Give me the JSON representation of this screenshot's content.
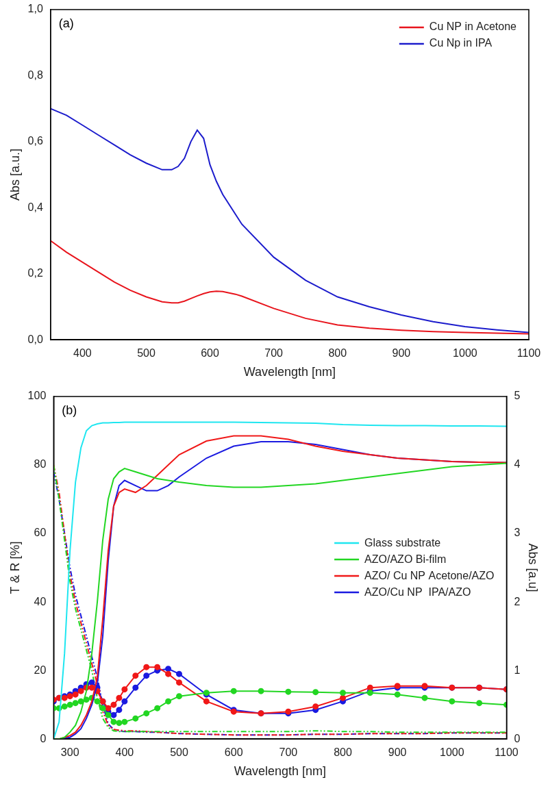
{
  "chart_data": [
    {
      "type": "line",
      "title": "(a)",
      "xlabel": "Wavelength [nm]",
      "ylabel": "Abs [a.u.]",
      "x": [
        350,
        375,
        400,
        425,
        450,
        475,
        500,
        525,
        540,
        550,
        560,
        570,
        580,
        590,
        600,
        610,
        620,
        640,
        650,
        700,
        750,
        800,
        850,
        900,
        950,
        1000,
        1050,
        1100
      ],
      "series": [
        {
          "name": "Cu NP in Acetone",
          "color": "#e8141c",
          "line_style": "solid",
          "marker": "none",
          "values": [
            0.3,
            0.265,
            0.235,
            0.205,
            0.175,
            0.15,
            0.13,
            0.115,
            0.112,
            0.112,
            0.117,
            0.125,
            0.133,
            0.14,
            0.145,
            0.147,
            0.146,
            0.138,
            0.132,
            0.095,
            0.065,
            0.045,
            0.035,
            0.029,
            0.025,
            0.022,
            0.02,
            0.018
          ]
        },
        {
          "name": "Cu Np in IPA",
          "color": "#1c1ccc",
          "line_style": "solid",
          "marker": "none",
          "values": [
            0.7,
            0.68,
            0.65,
            0.62,
            0.59,
            0.56,
            0.535,
            0.515,
            0.515,
            0.525,
            0.55,
            0.6,
            0.635,
            0.61,
            0.53,
            0.48,
            0.44,
            0.38,
            0.35,
            0.25,
            0.18,
            0.13,
            0.1,
            0.075,
            0.055,
            0.04,
            0.03,
            0.022
          ]
        }
      ],
      "xlim": [
        350,
        1100
      ],
      "xticks": [
        400,
        500,
        600,
        700,
        800,
        900,
        1000,
        1100
      ],
      "ylim": [
        0,
        1.0
      ],
      "yticks": [
        {
          "value": 0,
          "label": "0,0"
        },
        {
          "value": 0.2,
          "label": "0,2"
        },
        {
          "value": 0.4,
          "label": "0,4"
        },
        {
          "value": 0.6,
          "label": "0,6"
        },
        {
          "value": 0.8,
          "label": "0,8"
        },
        {
          "value": 1.0,
          "label": "1,0"
        }
      ],
      "grid": false,
      "legend": "upper right"
    },
    {
      "type": "line",
      "title": "(b)",
      "xlabel": "Wavelength [nm]",
      "ylabel": "T & R [%]",
      "y2label": "Abs [a.u]",
      "x": [
        270,
        280,
        290,
        300,
        310,
        320,
        330,
        340,
        350,
        360,
        370,
        380,
        390,
        400,
        420,
        440,
        460,
        480,
        500,
        550,
        600,
        650,
        700,
        750,
        800,
        850,
        900,
        950,
        1000,
        1050,
        1100
      ],
      "series": [
        {
          "name": "Glass substrate",
          "color": "#1ee6f0",
          "line_style": "solid",
          "marker": "none",
          "values": [
            0,
            5,
            25,
            55,
            75,
            85,
            90,
            91.5,
            92,
            92.3,
            92.3,
            92.4,
            92.4,
            92.5,
            92.5,
            92.5,
            92.5,
            92.5,
            92.5,
            92.5,
            92.5,
            92.4,
            92.3,
            92.2,
            91.8,
            91.6,
            91.5,
            91.5,
            91.4,
            91.4,
            91.3
          ]
        },
        {
          "name": "AZO/AZO Bi-film",
          "color": "#22d622",
          "line_style": "solid",
          "marker": "none",
          "values": [
            0,
            0,
            0.5,
            2,
            4,
            8,
            14,
            25,
            40,
            58,
            70,
            76,
            78,
            79,
            78,
            77,
            76,
            75.5,
            75,
            74,
            73.5,
            73.5,
            74,
            74.5,
            75.5,
            76.5,
            77.5,
            78.5,
            79.5,
            80,
            80.5
          ]
        },
        {
          "name": "AZO/ Cu NP Acetone/AZO",
          "color": "#f01818",
          "line_style": "solid",
          "marker": "none",
          "values": [
            0,
            0,
            0.5,
            1,
            2,
            4,
            7,
            11,
            18,
            35,
            55,
            68,
            72,
            73,
            72,
            74,
            77,
            80,
            83,
            87,
            88.5,
            88.5,
            87.5,
            85.5,
            84,
            83,
            82,
            81.5,
            81,
            80.8,
            80.7
          ]
        },
        {
          "name": "AZO/Cu NP  IPA/AZO",
          "color": "#1a1ae0",
          "line_style": "solid",
          "marker": "none",
          "values": [
            0,
            0,
            0.3,
            0.5,
            1.5,
            3,
            6,
            10,
            16,
            30,
            52,
            68,
            74,
            75.5,
            74,
            72.5,
            72.5,
            74,
            76.5,
            82,
            85.5,
            86.8,
            86.8,
            86,
            84.5,
            83,
            82,
            81.5,
            81,
            80.8,
            80.7
          ]
        },
        {
          "name": "AZO/AZO Bi-film",
          "color": "#22d622",
          "line_style": "solid",
          "marker": "circle",
          "values": [
            9,
            9,
            9.5,
            10,
            10.5,
            11,
            11.5,
            12,
            11,
            9,
            7,
            5,
            4.7,
            5,
            6,
            7.5,
            9,
            11,
            12.5,
            13.5,
            14,
            14,
            13.8,
            13.7,
            13.5,
            13.5,
            13,
            12,
            11,
            10.5,
            10
          ]
        },
        {
          "name": "AZO/ Cu NP Acetone/AZO",
          "color": "#f01818",
          "line_style": "solid",
          "marker": "circle",
          "values": [
            11.5,
            12,
            12,
            12.5,
            13,
            14,
            15,
            15,
            14,
            11,
            9,
            10,
            12,
            14.5,
            18.5,
            21,
            21,
            19,
            16.5,
            11,
            8,
            7.5,
            8,
            9.5,
            12,
            15,
            15.5,
            15.5,
            15,
            15,
            14.5
          ]
        },
        {
          "name": "AZO/Cu NP  IPA/AZO",
          "color": "#1a1ae0",
          "line_style": "solid",
          "marker": "circle",
          "values": [
            11,
            12,
            12.5,
            13,
            14,
            15,
            16,
            16.5,
            15,
            11,
            8,
            7,
            8.5,
            11,
            15,
            18.5,
            20,
            20.5,
            19,
            13,
            8.5,
            7.5,
            7.5,
            8.5,
            11,
            14,
            15,
            15,
            15,
            15,
            14.5
          ]
        },
        {
          "name": "AZO/AZO Bi-film",
          "color": "#22d622",
          "line_style": "dash_dot_dot",
          "marker": "none",
          "axis": "y2",
          "values": [
            4.0,
            3.5,
            2.9,
            2.3,
            1.9,
            1.6,
            1.3,
            1.0,
            0.6,
            0.3,
            0.17,
            0.12,
            0.11,
            0.11,
            0.11,
            0.11,
            0.11,
            0.11,
            0.11,
            0.11,
            0.11,
            0.11,
            0.11,
            0.12,
            0.11,
            0.11,
            0.1,
            0.1,
            0.1,
            0.1,
            0.1
          ]
        },
        {
          "name": "AZO/ Cu NP Acetone/AZO",
          "color": "#f01818",
          "line_style": "dash_dot_dot",
          "marker": "none",
          "axis": "y2",
          "values": [
            4.0,
            3.6,
            3.0,
            2.4,
            2.0,
            1.7,
            1.4,
            1.1,
            0.8,
            0.4,
            0.2,
            0.14,
            0.13,
            0.12,
            0.12,
            0.11,
            0.1,
            0.09,
            0.08,
            0.07,
            0.06,
            0.06,
            0.06,
            0.07,
            0.07,
            0.08,
            0.08,
            0.08,
            0.09,
            0.09,
            0.09
          ]
        },
        {
          "name": "AZO/Cu NP  IPA/AZO",
          "color": "#1a1ae0",
          "line_style": "dash_dot_dot",
          "marker": "none",
          "axis": "y2",
          "values": [
            3.9,
            3.5,
            3.0,
            2.5,
            2.1,
            1.8,
            1.5,
            1.2,
            0.9,
            0.5,
            0.22,
            0.14,
            0.12,
            0.11,
            0.11,
            0.1,
            0.1,
            0.09,
            0.08,
            0.07,
            0.06,
            0.06,
            0.06,
            0.07,
            0.07,
            0.08,
            0.08,
            0.08,
            0.09,
            0.09,
            0.09
          ]
        }
      ],
      "xlim": [
        270,
        1100
      ],
      "xticks": [
        300,
        400,
        500,
        600,
        700,
        800,
        900,
        1000,
        1100
      ],
      "ylim": [
        0,
        100
      ],
      "yticks": [
        0,
        20,
        40,
        60,
        80,
        100
      ],
      "y2lim": [
        0,
        5
      ],
      "y2ticks": [
        0,
        1,
        2,
        3,
        4,
        5
      ],
      "grid": false,
      "legend": "center right"
    }
  ]
}
